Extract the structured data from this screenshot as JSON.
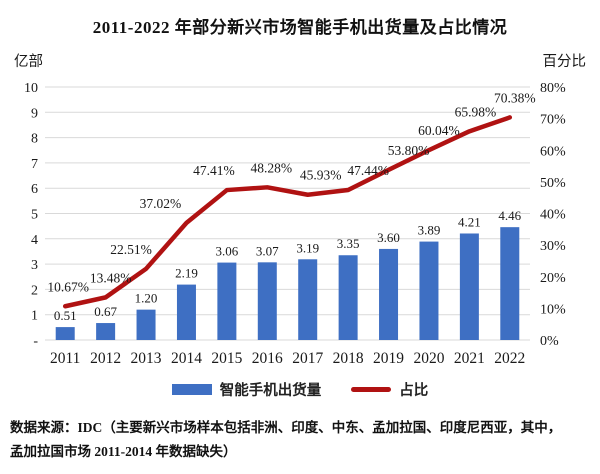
{
  "title": "2011-2022 年部分新兴市场智能手机出货量及占比情况",
  "chart_data": {
    "type": "combo",
    "categories": [
      "2011",
      "2012",
      "2013",
      "2014",
      "2015",
      "2016",
      "2017",
      "2018",
      "2019",
      "2020",
      "2021",
      "2022"
    ],
    "left_axis": {
      "label": "亿部",
      "min": 0,
      "max": 10,
      "tick_step": 1,
      "ticks": [
        "10",
        "9",
        "8",
        "7",
        "6",
        "5",
        "4",
        "3",
        "2",
        "1",
        "-"
      ]
    },
    "right_axis": {
      "label": "百分比",
      "min": 0,
      "max": 80,
      "tick_step": 10,
      "ticks": [
        "80%",
        "70%",
        "60%",
        "50%",
        "40%",
        "30%",
        "20%",
        "10%",
        "0%"
      ]
    },
    "grid": true,
    "legend_position": "bottom",
    "series": [
      {
        "name": "智能手机出货量",
        "type": "bar",
        "axis": "left",
        "color": "#3E6FC3",
        "values": [
          0.51,
          0.67,
          1.2,
          2.19,
          3.06,
          3.07,
          3.19,
          3.35,
          3.6,
          3.89,
          4.21,
          4.46
        ],
        "labels": [
          "0.51",
          "0.67",
          "1.20",
          "2.19",
          "3.06",
          "3.07",
          "3.19",
          "3.35",
          "3.60",
          "3.89",
          "4.21",
          "4.46"
        ]
      },
      {
        "name": "占比",
        "type": "line",
        "axis": "right",
        "color": "#B01212",
        "values": [
          10.67,
          13.48,
          22.51,
          37.02,
          47.41,
          48.28,
          45.93,
          47.44,
          53.8,
          60.04,
          65.98,
          70.38
        ],
        "labels": [
          "10.67%",
          "13.48%",
          "22.51%",
          "37.02%",
          "47.41%",
          "48.28%",
          "45.93%",
          "47.44%",
          "53.80%",
          "60.04%",
          "65.98%",
          "70.38%"
        ]
      }
    ]
  },
  "source_note": {
    "line1": "数据来源：IDC（主要新兴市场样本包括非洲、印度、中东、孟加拉国、印度尼西亚，其中，",
    "line2": "孟加拉国市场 2011-2014 年数据缺失）"
  },
  "colors": {
    "bar": "#3E6FC3",
    "line": "#B01212",
    "grid": "#D9D9D9",
    "text": "#1a1a1a"
  }
}
